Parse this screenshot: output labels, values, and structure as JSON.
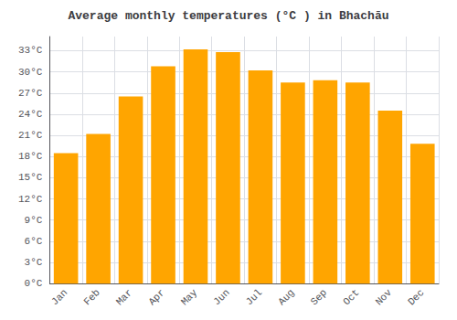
{
  "chart_data": {
    "type": "bar",
    "title": "Average monthly temperatures (°C ) in Bhachāu",
    "categories": [
      "Jan",
      "Feb",
      "Mar",
      "Apr",
      "May",
      "Jun",
      "Jul",
      "Aug",
      "Sep",
      "Oct",
      "Nov",
      "Dec"
    ],
    "values": [
      18.5,
      21.2,
      26.5,
      30.8,
      33.2,
      32.8,
      30.2,
      28.5,
      28.8,
      28.5,
      24.5,
      19.8
    ],
    "color": "#FFA500",
    "ylim": [
      0,
      35
    ],
    "yticks": [
      {
        "value": 0,
        "label": "0°C"
      },
      {
        "value": 3,
        "label": "3°C"
      },
      {
        "value": 6,
        "label": "6°C"
      },
      {
        "value": 9,
        "label": "9°C"
      },
      {
        "value": 12,
        "label": "12°C"
      },
      {
        "value": 15,
        "label": "15°C"
      },
      {
        "value": 18,
        "label": "18°C"
      },
      {
        "value": 21,
        "label": "21°C"
      },
      {
        "value": 24,
        "label": "24°C"
      },
      {
        "value": 27,
        "label": "27°C"
      },
      {
        "value": 30,
        "label": "30°C"
      },
      {
        "value": 33,
        "label": "33°C"
      }
    ],
    "grid": true
  }
}
